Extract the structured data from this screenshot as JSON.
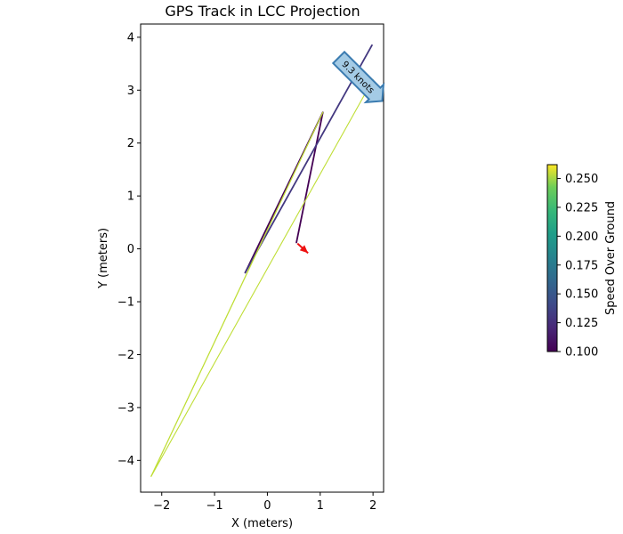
{
  "chart_data": {
    "type": "line",
    "title": "GPS Track in LCC Projection",
    "xlabel": "X (meters)",
    "ylabel": "Y (meters)",
    "xlim": [
      -2.4,
      2.2
    ],
    "ylim": [
      -4.6,
      4.25
    ],
    "xticks": [
      -2,
      -1,
      0,
      1,
      2
    ],
    "yticks": [
      -4,
      -3,
      -2,
      -1,
      0,
      1,
      2,
      3,
      4
    ],
    "grid": false,
    "series": [
      {
        "x": [
          0.55,
          1.05,
          -0.42,
          1.98
        ],
        "y": [
          0.12,
          2.58,
          -0.45,
          3.85
        ],
        "speed": [
          0.1,
          0.1,
          0.13,
          0.17
        ]
      },
      {
        "x": [
          -2.2,
          1.05,
          -2.2,
          2.0
        ],
        "y": [
          -4.3,
          2.58,
          -4.3,
          3.2
        ],
        "speed": [
          0.26,
          0.26,
          0.26,
          0.26
        ]
      }
    ],
    "arrow": {
      "x": 0.57,
      "y": 0.1,
      "dx": 0.2,
      "dy": -0.18,
      "color": "#ee1111"
    },
    "annotation": {
      "text": "9.3 knots",
      "x": 1.72,
      "y": 3.15
    },
    "colorbar": {
      "label": "Speed Over Ground",
      "min": 0.1,
      "max": 0.262,
      "ticks": [
        "0.100",
        "0.125",
        "0.150",
        "0.175",
        "0.200",
        "0.225",
        "0.250"
      ],
      "colormap": "viridis"
    }
  }
}
